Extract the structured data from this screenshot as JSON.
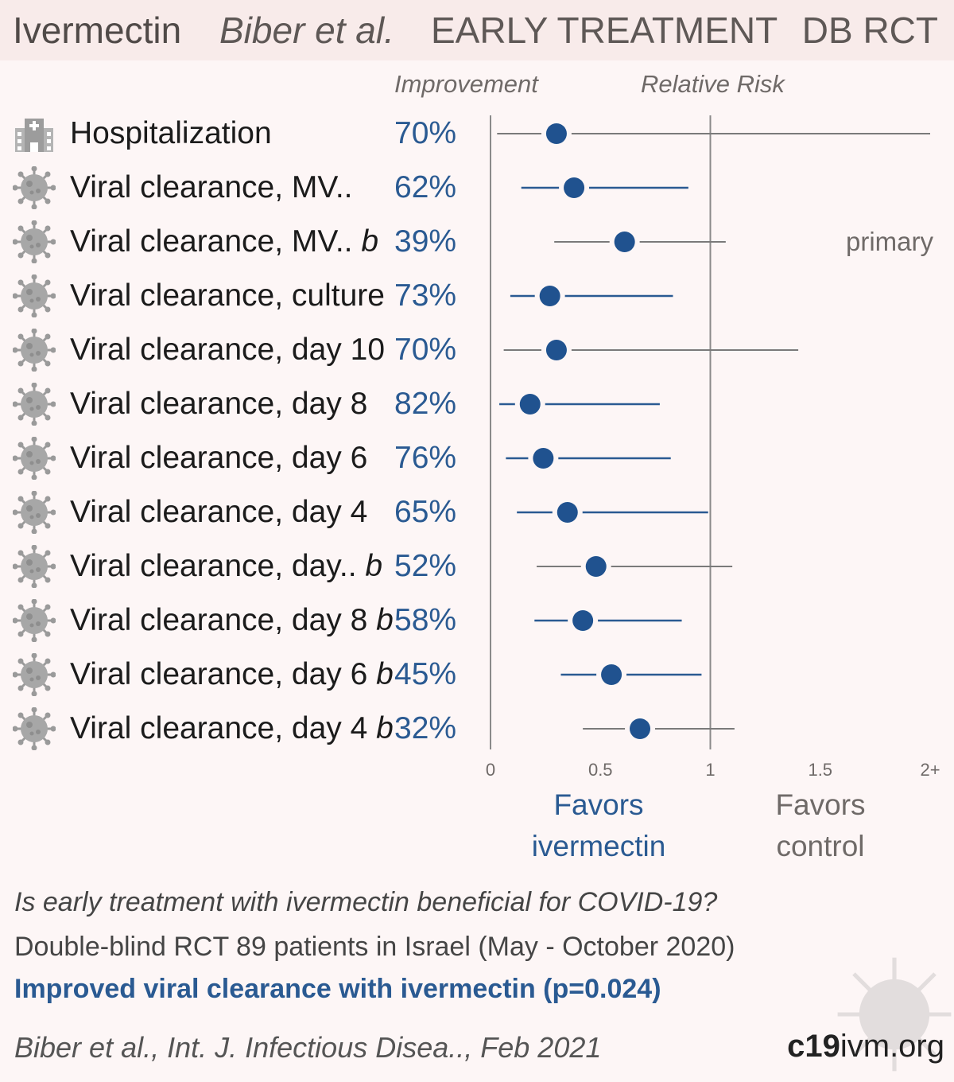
{
  "header": {
    "drug": "Ivermectin",
    "author": "Biber et al.",
    "stage": "EARLY TREATMENT",
    "design": "DB RCT"
  },
  "columns": {
    "improvement": "Improvement",
    "relative_risk": "Relative Risk"
  },
  "rows": [
    {
      "label": "Hospitalization",
      "suffix": "",
      "improvement": "70%",
      "icon": "hospital-icon"
    },
    {
      "label": "Viral clearance, MV..",
      "suffix": "",
      "improvement": "62%",
      "icon": "virus-icon"
    },
    {
      "label": "Viral clearance, MV.. ",
      "suffix": "b",
      "improvement": "39%",
      "icon": "virus-icon",
      "note": "primary"
    },
    {
      "label": "Viral clearance, culture",
      "suffix": "",
      "improvement": "73%",
      "icon": "virus-icon"
    },
    {
      "label": "Viral clearance, day 10",
      "suffix": "",
      "improvement": "70%",
      "icon": "virus-icon"
    },
    {
      "label": "Viral clearance, day 8",
      "suffix": "",
      "improvement": "82%",
      "icon": "virus-icon"
    },
    {
      "label": "Viral clearance, day 6",
      "suffix": "",
      "improvement": "76%",
      "icon": "virus-icon"
    },
    {
      "label": "Viral clearance, day 4",
      "suffix": "",
      "improvement": "65%",
      "icon": "virus-icon"
    },
    {
      "label": "Viral clearance, day.. ",
      "suffix": "b",
      "improvement": "52%",
      "icon": "virus-icon"
    },
    {
      "label": "Viral clearance, day 8 ",
      "suffix": "b",
      "improvement": "58%",
      "icon": "virus-icon"
    },
    {
      "label": "Viral clearance, day 6 ",
      "suffix": "b",
      "improvement": "45%",
      "icon": "virus-icon"
    },
    {
      "label": "Viral clearance, day 4 ",
      "suffix": "b",
      "improvement": "32%",
      "icon": "virus-icon"
    }
  ],
  "chart_data": {
    "type": "forest",
    "xlabel": "",
    "xlim": [
      0,
      2
    ],
    "xticks": [
      "0",
      "0.5",
      "1",
      "1.5",
      "2+"
    ],
    "reference_line": 1,
    "favors_left": [
      "Favors",
      "ivermectin"
    ],
    "favors_right": [
      "Favors",
      "control"
    ],
    "series": [
      {
        "name": "Hospitalization",
        "rr": 0.3,
        "ci_low": 0.03,
        "ci_high": 2.0,
        "significant": false
      },
      {
        "name": "Viral clearance, MV..",
        "rr": 0.38,
        "ci_low": 0.14,
        "ci_high": 0.9,
        "significant": true
      },
      {
        "name": "Viral clearance, MV.. b",
        "rr": 0.61,
        "ci_low": 0.29,
        "ci_high": 1.07,
        "significant": false
      },
      {
        "name": "Viral clearance, culture",
        "rr": 0.27,
        "ci_low": 0.09,
        "ci_high": 0.83,
        "significant": true
      },
      {
        "name": "Viral clearance, day 10",
        "rr": 0.3,
        "ci_low": 0.06,
        "ci_high": 1.4,
        "significant": false
      },
      {
        "name": "Viral clearance, day 8",
        "rr": 0.18,
        "ci_low": 0.04,
        "ci_high": 0.77,
        "significant": true
      },
      {
        "name": "Viral clearance, day 6",
        "rr": 0.24,
        "ci_low": 0.07,
        "ci_high": 0.82,
        "significant": true
      },
      {
        "name": "Viral clearance, day 4",
        "rr": 0.35,
        "ci_low": 0.12,
        "ci_high": 0.99,
        "significant": true
      },
      {
        "name": "Viral clearance, day.. b",
        "rr": 0.48,
        "ci_low": 0.21,
        "ci_high": 1.1,
        "significant": false
      },
      {
        "name": "Viral clearance, day 8 b",
        "rr": 0.42,
        "ci_low": 0.2,
        "ci_high": 0.87,
        "significant": true
      },
      {
        "name": "Viral clearance, day 6 b",
        "rr": 0.55,
        "ci_low": 0.32,
        "ci_high": 0.96,
        "significant": true
      },
      {
        "name": "Viral clearance, day 4 b",
        "rr": 0.68,
        "ci_low": 0.42,
        "ci_high": 1.11,
        "significant": false
      }
    ]
  },
  "footer": {
    "question": "Is early treatment with ivermectin beneficial for COVID-19?",
    "design": "Double-blind RCT 89 patients in Israel (May - October 2020)",
    "conclusion": "Improved viral clearance with ivermectin (p=0.024)",
    "reference": "Biber et al., Int. J. Infectious Disea.., Feb 2021",
    "brand_bold": "c19",
    "brand_rest": "ivm.org"
  },
  "colors": {
    "significant": "#2a5a92",
    "not_significant": "#7a7a7a",
    "point": "#20528f",
    "axis": "#888888"
  }
}
